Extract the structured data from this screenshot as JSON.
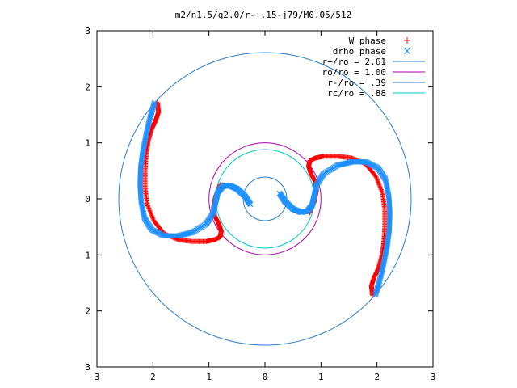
{
  "chart_data": {
    "type": "scatter",
    "title": "m2/n1.5/q2.0/r-+.15-j79/M0.05/512",
    "xlabel": "",
    "ylabel": "",
    "xlim": [
      -3,
      3
    ],
    "ylim": [
      -3,
      3
    ],
    "x_ticks": [
      -3,
      -2,
      -1,
      0,
      1,
      2,
      3
    ],
    "y_ticks": [
      -3,
      -2,
      -1,
      0,
      1,
      2,
      3
    ],
    "x_tick_labels": [
      "3",
      "2",
      "1",
      "0",
      "1",
      "2",
      "3"
    ],
    "y_tick_labels": [
      "3",
      "2",
      "1",
      "0",
      "1",
      "2",
      "3"
    ],
    "grid": false,
    "legend_position": "top-right",
    "series": [
      {
        "name": "W phase",
        "marker": "+",
        "color": "#ff0000",
        "x": [
          -1.92,
          -1.9,
          -1.95,
          -2.02,
          -2.08,
          -2.12,
          -2.14,
          -2.14,
          -2.1,
          -1.98,
          -1.8,
          -1.55,
          -1.3,
          -1.05,
          -0.9,
          -0.8,
          -0.78,
          -0.82,
          -0.9,
          -0.92,
          -0.88,
          -0.8,
          1.92,
          1.9,
          1.95,
          2.02,
          2.08,
          2.12,
          2.14,
          2.14,
          2.1,
          1.98,
          1.8,
          1.55,
          1.3,
          1.05,
          0.9,
          0.8,
          0.78,
          0.82,
          0.9,
          0.92,
          0.88,
          0.8
        ],
        "y": [
          1.72,
          1.55,
          1.4,
          1.25,
          1.05,
          0.8,
          0.5,
          0.2,
          -0.1,
          -0.4,
          -0.62,
          -0.73,
          -0.76,
          -0.76,
          -0.73,
          -0.68,
          -0.58,
          -0.45,
          -0.3,
          -0.15,
          0.05,
          0.25,
          -1.72,
          -1.55,
          -1.4,
          -1.25,
          -1.05,
          -0.8,
          -0.5,
          -0.2,
          0.1,
          0.4,
          0.62,
          0.73,
          0.76,
          0.76,
          0.73,
          0.68,
          0.58,
          0.45,
          0.3,
          0.15,
          -0.05,
          -0.25
        ]
      },
      {
        "name": "drho phase",
        "marker": "x",
        "color": "#1e90ff",
        "x": [
          -1.97,
          -2.05,
          -2.12,
          -2.18,
          -2.22,
          -2.23,
          -2.21,
          -2.15,
          -2.02,
          -1.8,
          -1.55,
          -1.3,
          -1.05,
          -0.92,
          -0.88,
          -0.84,
          -0.76,
          -0.64,
          -0.5,
          -0.36,
          -0.26,
          1.97,
          2.05,
          2.12,
          2.18,
          2.22,
          2.23,
          2.21,
          2.15,
          2.02,
          1.8,
          1.55,
          1.3,
          1.05,
          0.92,
          0.88,
          0.84,
          0.76,
          0.64,
          0.5,
          0.36,
          0.26
        ],
        "y": [
          1.72,
          1.45,
          1.15,
          0.85,
          0.55,
          0.25,
          -0.05,
          -0.35,
          -0.55,
          -0.66,
          -0.66,
          -0.6,
          -0.45,
          -0.25,
          -0.05,
          0.12,
          0.22,
          0.24,
          0.18,
          0.05,
          -0.1,
          -1.72,
          -1.45,
          -1.15,
          -0.85,
          -0.55,
          -0.25,
          0.05,
          0.35,
          0.55,
          0.66,
          0.66,
          0.6,
          0.45,
          0.25,
          0.05,
          -0.12,
          -0.22,
          -0.24,
          -0.18,
          -0.05,
          0.1
        ]
      },
      {
        "name": "r+/ro = 2.61",
        "type": "circle",
        "radius": 2.61,
        "color": "#2a7fc9"
      },
      {
        "name": "ro/ro = 1.00",
        "type": "circle",
        "radius": 1.0,
        "color": "#b000b0"
      },
      {
        "name": "r-/ro = .39",
        "type": "circle",
        "radius": 0.39,
        "color": "#2a7fc9"
      },
      {
        "name": "rc/ro = .88",
        "type": "circle",
        "radius": 0.88,
        "color": "#00c8c8"
      }
    ]
  }
}
